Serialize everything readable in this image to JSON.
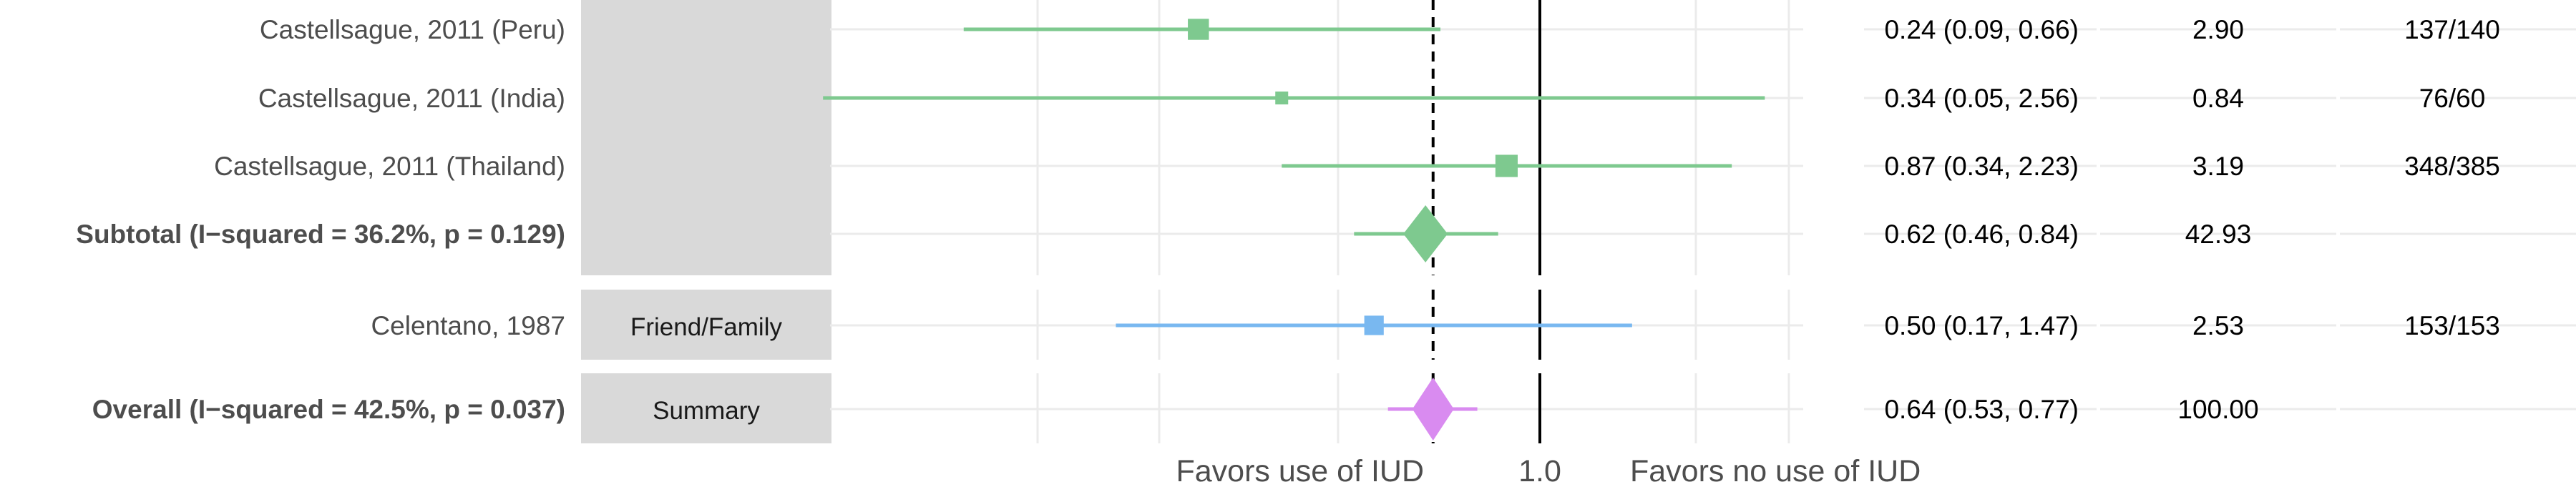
{
  "chart_data": {
    "type": "forest",
    "x_scale": "log",
    "xlim": [
      0.04,
      3.5
    ],
    "reference_line": 1.0,
    "pooled_line": 0.64,
    "axis": {
      "tick_label": "1.0",
      "left_annotation": "Favors use of IUD",
      "right_annotation": "Favors no use of IUD"
    },
    "colors": {
      "green": "#7ec98f",
      "blue": "#79b8f0",
      "purple": "#d98bf0",
      "strip": "#d9d9d9",
      "grid": "#ebebeb"
    },
    "rows": [
      {
        "label": "Castellsague, 2011 (Peru)",
        "bold": false,
        "group": "",
        "type": "study",
        "color": "green",
        "estimate": 0.24,
        "lower": 0.09,
        "upper": 0.66,
        "ci_text": "0.24 (0.09, 0.66)",
        "weight": "2.90",
        "events": "137/140"
      },
      {
        "label": "Castellsague, 2011 (India)",
        "bold": false,
        "group": "",
        "type": "study",
        "color": "green",
        "estimate": 0.34,
        "lower": 0.05,
        "upper": 2.56,
        "ci_text": "0.34 (0.05, 2.56)",
        "weight": "0.84",
        "events": "76/60"
      },
      {
        "label": "Castellsague, 2011 (Thailand)",
        "bold": false,
        "group": "",
        "type": "study",
        "color": "green",
        "estimate": 0.87,
        "lower": 0.34,
        "upper": 2.23,
        "ci_text": "0.87 (0.34, 2.23)",
        "weight": "3.19",
        "events": "348/385"
      },
      {
        "label": "Subtotal (I−squared = 36.2%, p = 0.129)",
        "bold": true,
        "group": "",
        "type": "subtotal",
        "color": "green",
        "estimate": 0.62,
        "lower": 0.46,
        "upper": 0.84,
        "ci_text": "0.62 (0.46, 0.84)",
        "weight": "42.93",
        "events": ""
      },
      {
        "label": "Celentano, 1987",
        "bold": false,
        "group": "Friend/Family",
        "type": "study",
        "color": "blue",
        "estimate": 0.5,
        "lower": 0.17,
        "upper": 1.47,
        "ci_text": "0.50 (0.17, 1.47)",
        "weight": "2.53",
        "events": "153/153"
      },
      {
        "label": "Overall (I−squared = 42.5%, p = 0.037)",
        "bold": true,
        "group": "Summary",
        "type": "overall",
        "color": "purple",
        "estimate": 0.64,
        "lower": 0.53,
        "upper": 0.77,
        "ci_text": "0.64 (0.53, 0.77)",
        "weight": "100.00",
        "events": ""
      }
    ]
  }
}
